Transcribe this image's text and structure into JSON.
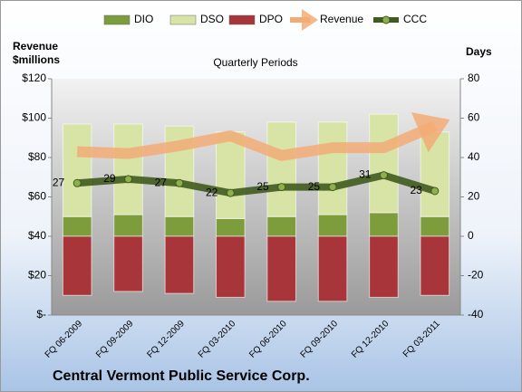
{
  "chart_data": {
    "type": "combo",
    "title": "Central Vermont Public Service Corp.",
    "subtitle": "Quarterly Periods",
    "ylabel_lines": [
      "Revenue",
      "$millions"
    ],
    "y2label": "Days",
    "categories": [
      "FQ 06-2009",
      "FQ 09-2009",
      "FQ 12-2009",
      "FQ 03-2010",
      "FQ 06-2010",
      "FQ 09-2010",
      "FQ 12-2010",
      "FQ 03-2011"
    ],
    "ylim": [
      0,
      120
    ],
    "yticks": [
      {
        "value": 0,
        "label": "$-"
      },
      {
        "value": 20,
        "label": "$20"
      },
      {
        "value": 40,
        "label": "$40"
      },
      {
        "value": 60,
        "label": "$60"
      },
      {
        "value": 80,
        "label": "$80"
      },
      {
        "value": 100,
        "label": "$100"
      },
      {
        "value": 120,
        "label": "$120"
      }
    ],
    "y2lim": [
      -40,
      80
    ],
    "y2ticks": [
      -40,
      -20,
      0,
      20,
      40,
      60,
      80
    ],
    "grid": false,
    "legend": "top",
    "series": [
      {
        "name": "DIO",
        "type": "bar",
        "axis": "y2",
        "color": "#7d9c3c",
        "values": [
          10,
          11,
          10,
          9,
          10,
          11,
          12,
          10
        ]
      },
      {
        "name": "DSO",
        "type": "bar",
        "axis": "y2",
        "color": "#d7e4a6",
        "values": [
          47,
          46,
          46,
          44,
          48,
          47,
          50,
          43
        ]
      },
      {
        "name": "DPO",
        "type": "bar",
        "axis": "y2",
        "color": "#a8353a",
        "values": [
          -30,
          -28,
          -29,
          -31,
          -33,
          -33,
          -31,
          -30
        ]
      },
      {
        "name": "Revenue",
        "type": "arrow",
        "axis": "y",
        "color": "#f2ab76",
        "values": [
          83,
          82,
          86,
          91,
          81,
          85,
          85,
          96
        ]
      },
      {
        "name": "CCC",
        "type": "line",
        "axis": "y2",
        "color": "#3f5b1e",
        "values": [
          27,
          29,
          27,
          22,
          25,
          25,
          31,
          23
        ]
      }
    ]
  }
}
